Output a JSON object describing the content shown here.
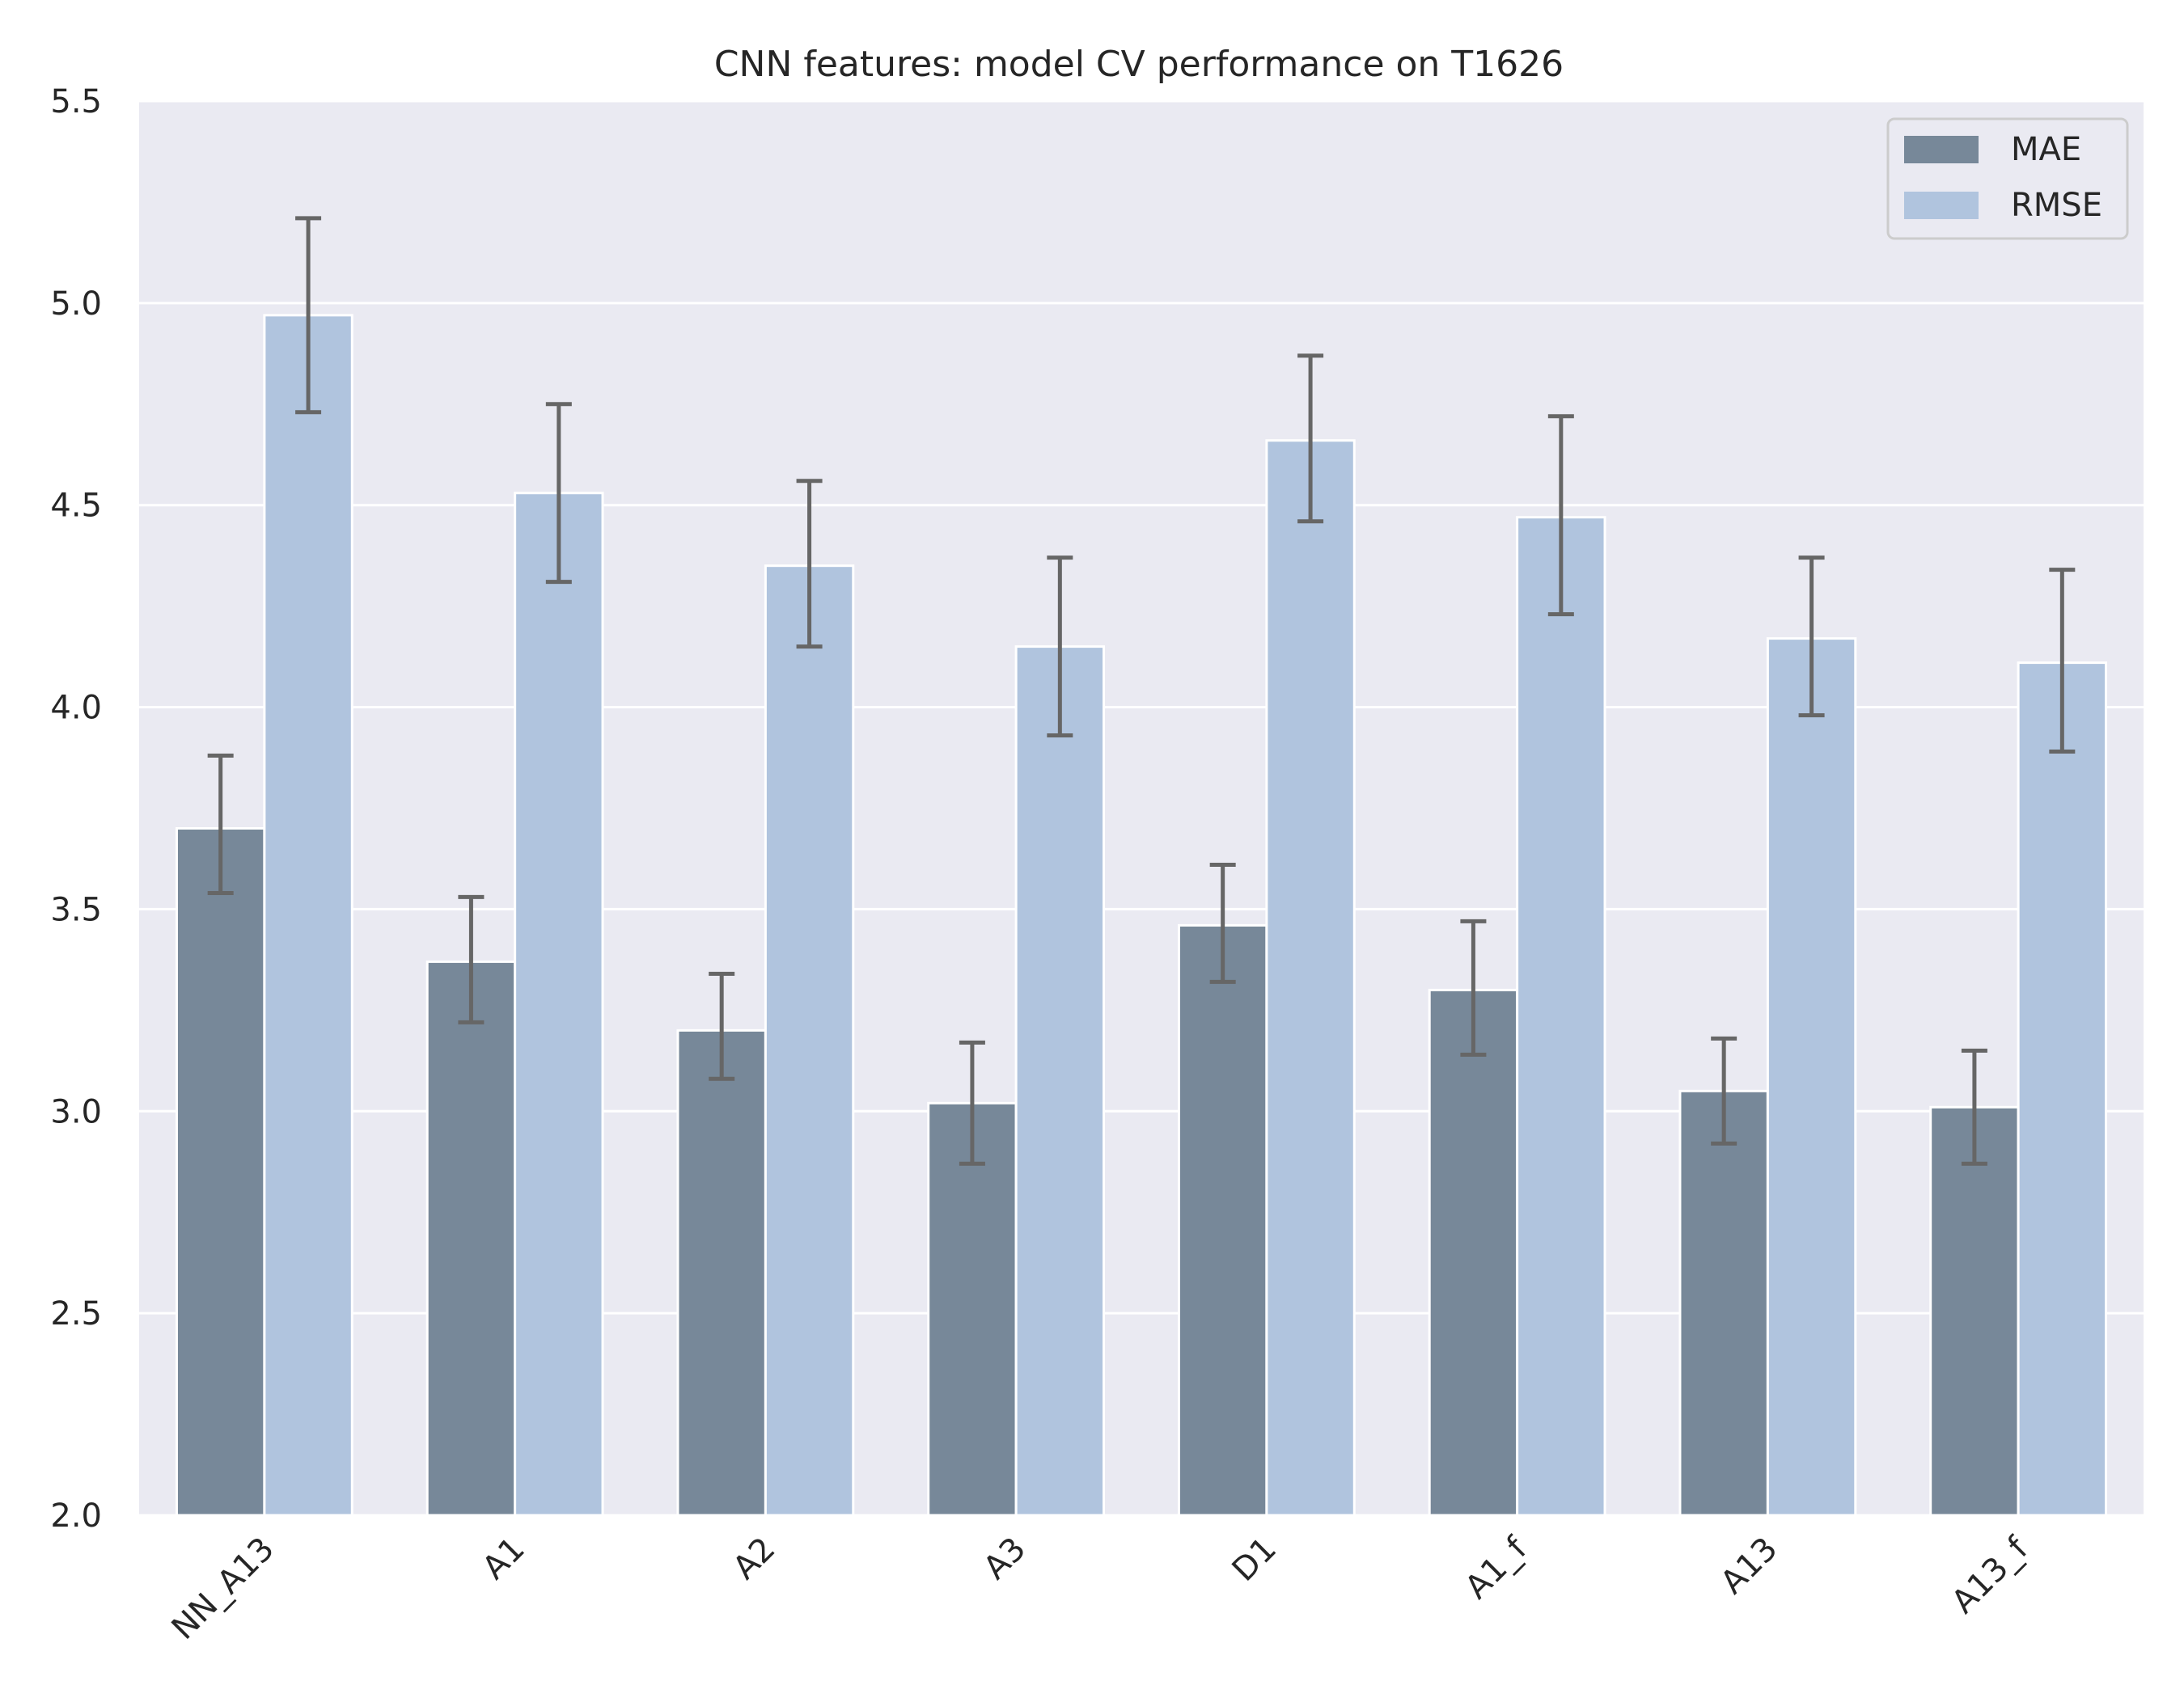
{
  "chart_data": {
    "type": "bar",
    "title": "CNN features: model CV performance on T1626",
    "xlabel": "",
    "ylabel": "",
    "categories": [
      "NN_A13",
      "A1",
      "A2",
      "A3",
      "D1",
      "A1_f",
      "A13",
      "A13_f"
    ],
    "series": [
      {
        "name": "MAE",
        "color": "#778899",
        "values": [
          3.7,
          3.37,
          3.2,
          3.02,
          3.46,
          3.3,
          3.05,
          3.01
        ],
        "error_low": [
          3.54,
          3.22,
          3.08,
          2.87,
          3.32,
          3.14,
          2.92,
          2.87
        ],
        "error_high": [
          3.88,
          3.53,
          3.34,
          3.17,
          3.61,
          3.47,
          3.18,
          3.15
        ]
      },
      {
        "name": "RMSE",
        "color": "#b0c4de",
        "values": [
          4.97,
          4.53,
          4.35,
          4.15,
          4.66,
          4.47,
          4.17,
          4.11
        ],
        "error_low": [
          4.73,
          4.31,
          4.15,
          3.93,
          4.46,
          4.23,
          3.98,
          3.89
        ],
        "error_high": [
          5.21,
          4.75,
          4.56,
          4.37,
          4.87,
          4.72,
          4.37,
          4.34
        ]
      }
    ],
    "ylim": [
      2.0,
      5.5
    ],
    "yticks": [
      "2.0",
      "2.5",
      "3.0",
      "3.5",
      "4.0",
      "4.5",
      "5.0",
      "5.5"
    ],
    "grid": true,
    "legend_position": "top-right",
    "background_color": "#eaeaf2",
    "errorbar_color": "#666666"
  }
}
